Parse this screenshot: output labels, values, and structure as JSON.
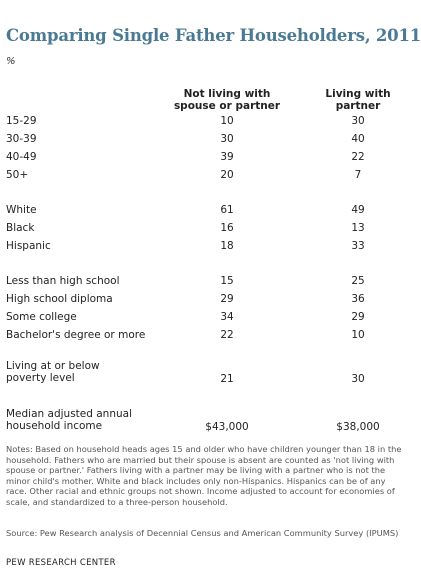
{
  "title": "Comparing Single Father Householders, 2011",
  "unit": "%",
  "chart_data": {
    "type": "table",
    "columns": [
      "Not living with spouse or partner",
      "Living with partner"
    ],
    "rows": [
      {
        "label": "15-29",
        "values": [
          "10",
          "30"
        ]
      },
      {
        "label": "30-39",
        "values": [
          "30",
          "40"
        ]
      },
      {
        "label": "40-49",
        "values": [
          "39",
          "22"
        ]
      },
      {
        "label": "50+",
        "values": [
          "20",
          "7"
        ]
      },
      {
        "label": "White",
        "values": [
          "61",
          "49"
        ]
      },
      {
        "label": "Black",
        "values": [
          "16",
          "13"
        ]
      },
      {
        "label": "Hispanic",
        "values": [
          "18",
          "33"
        ]
      },
      {
        "label": "Less than high school",
        "values": [
          "15",
          "25"
        ]
      },
      {
        "label": "High school diploma",
        "values": [
          "29",
          "36"
        ]
      },
      {
        "label": "Some college",
        "values": [
          "34",
          "29"
        ]
      },
      {
        "label": "Bachelor's degree or more",
        "values": [
          "22",
          "10"
        ]
      },
      {
        "label": "Living at or below poverty level",
        "values": [
          "21",
          "30"
        ]
      },
      {
        "label": "Median adjusted annual household income",
        "values": [
          "$43,000",
          "$38,000"
        ]
      }
    ]
  },
  "notes": "Notes: Based on household heads ages 15 and older who have children younger than 18 in the household. Fathers who are married but their spouse is absent are counted as 'not living with spouse or partner.' Fathers living with a partner may be living with a partner who is not the minor child's mother. White and black includes only non-Hispanics. Hispanics can be of any race. Other racial and ethnic groups not shown. Income adjusted to account for economies of scale, and standardized to a three-person household.",
  "source": "Source: Pew Research analysis of Decennial Census and American Community Survey (IPUMS)",
  "org": "PEW RESEARCH CENTER",
  "colors": {
    "title": "#4a7a93"
  }
}
